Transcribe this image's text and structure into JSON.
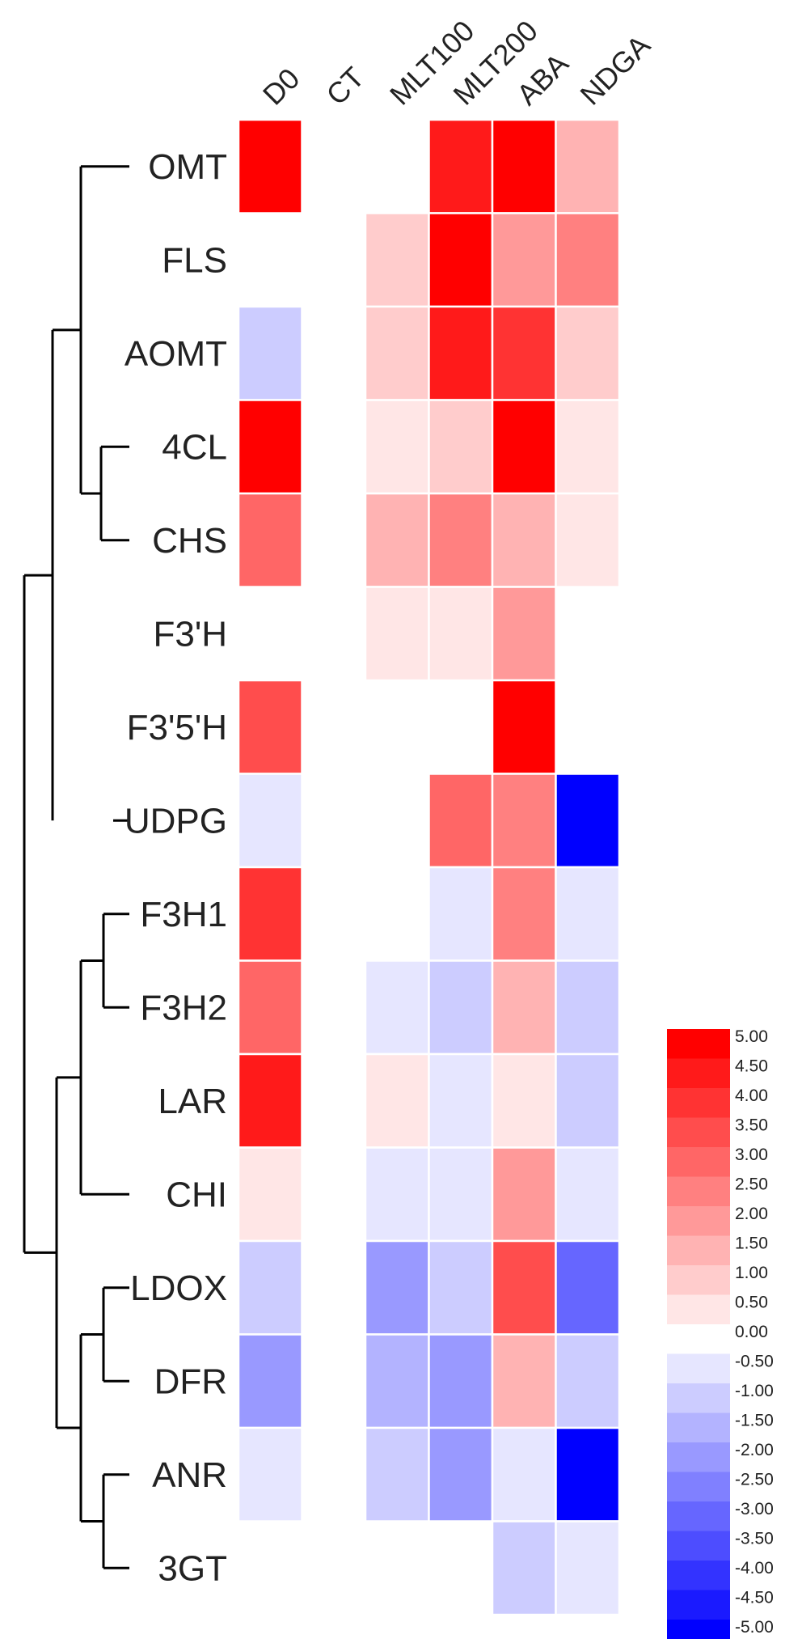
{
  "chart_data": {
    "type": "heatmap",
    "title": "",
    "columns": [
      "D0",
      "CT",
      "MLT100",
      "MLT200",
      "ABA",
      "NDGA"
    ],
    "rows": [
      "OMT",
      "FLS",
      "AOMT",
      "4CL",
      "CHS",
      "F3'H",
      "F3'5'H",
      "UDPG",
      "F3H1",
      "F3H2",
      "LAR",
      "CHI",
      "LDOX",
      "DFR",
      "ANR",
      "3GT"
    ],
    "values": [
      [
        5.0,
        0,
        0,
        4.5,
        5.0,
        1.5
      ],
      [
        0,
        0,
        1.0,
        5.0,
        2.0,
        2.5
      ],
      [
        -1.0,
        0,
        1.0,
        4.5,
        4.0,
        1.0
      ],
      [
        5.0,
        0,
        0.5,
        1.0,
        5.0,
        0.5
      ],
      [
        3.0,
        0,
        1.5,
        2.5,
        1.5,
        0.5
      ],
      [
        0,
        0,
        0.5,
        0.5,
        2.0,
        0
      ],
      [
        3.5,
        0,
        0,
        0,
        5.0,
        0
      ],
      [
        -0.5,
        0,
        0,
        3.0,
        2.5,
        -5.0
      ],
      [
        4.0,
        0,
        0,
        -0.5,
        2.5,
        -0.5
      ],
      [
        3.0,
        0,
        -0.5,
        -1.0,
        1.5,
        -1.0
      ],
      [
        4.5,
        0,
        0.5,
        -0.5,
        0.5,
        -1.0
      ],
      [
        0.5,
        0,
        -0.5,
        -0.5,
        2.0,
        -0.5
      ],
      [
        -1.0,
        0,
        -2.0,
        -1.0,
        3.5,
        -3.0
      ],
      [
        -2.0,
        0,
        -1.5,
        -2.0,
        1.5,
        -1.0
      ],
      [
        -0.5,
        0,
        -1.0,
        -2.0,
        -0.5,
        -5.0
      ],
      [
        0,
        0,
        0,
        0,
        -1.0,
        -0.5
      ]
    ],
    "color_scale": {
      "min": -5.0,
      "max": 5.0,
      "low_color": "#0000ff",
      "mid_color": "#ffffff",
      "high_color": "#ff0000"
    },
    "legend": {
      "position": "right",
      "tick_labels": [
        "5.00",
        "4.50",
        "4.00",
        "3.50",
        "3.00",
        "2.50",
        "2.00",
        "1.50",
        "1.00",
        "0.50",
        "0.00",
        "-0.50",
        "-1.00",
        "-1.50",
        "-2.00",
        "-2.50",
        "-3.00",
        "-3.50",
        "-4.00",
        "-4.50",
        "-5.00"
      ]
    },
    "dendrogram": "left"
  }
}
